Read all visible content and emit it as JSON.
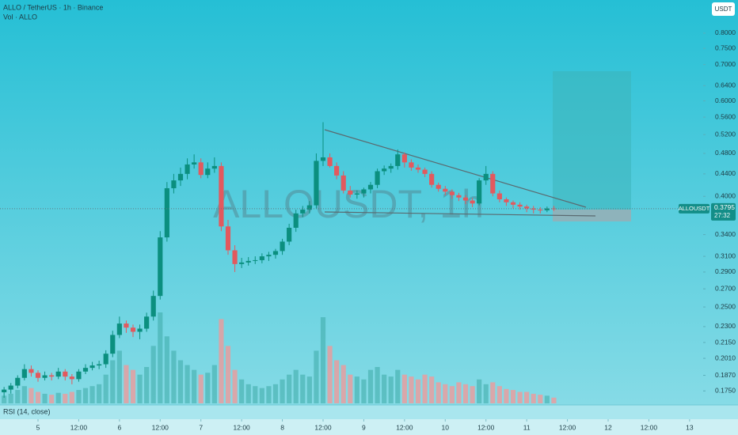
{
  "chart_data": {
    "type": "candlestick",
    "title": "ALLO / TetherUS · 1h · Binance",
    "volume_label": "Vol · ALLO",
    "watermark": "ALLOUSDT, 1h",
    "currency": "USDT",
    "symbol": "ALLOUSDT",
    "countdown": "27:32",
    "indicator_label": "RSI (14, close)",
    "log_scale": true,
    "up_color": "#0b8f7f",
    "down_color": "#e2595e",
    "x": [
      -10,
      -8,
      -6,
      -4,
      -2,
      0,
      2,
      4,
      6,
      8,
      10,
      12,
      14,
      16,
      18,
      20,
      22,
      24,
      26,
      28,
      30,
      32,
      34,
      36,
      38,
      40,
      42,
      44,
      46,
      48,
      50,
      52,
      54,
      56,
      58,
      60,
      62,
      64,
      66,
      68,
      70,
      72,
      74,
      76,
      78,
      80,
      82,
      84,
      86,
      88,
      90,
      92,
      94,
      96,
      98,
      100,
      102,
      104,
      106,
      108,
      110,
      112,
      114,
      116,
      118,
      120,
      122,
      124,
      126,
      128,
      130,
      132,
      134,
      136,
      138,
      140,
      142,
      144,
      146,
      148,
      150,
      152
    ],
    "open": [
      0.174,
      0.176,
      0.179,
      0.185,
      0.192,
      0.189,
      0.185,
      0.187,
      0.186,
      0.19,
      0.186,
      0.184,
      0.19,
      0.193,
      0.195,
      0.196,
      0.205,
      0.222,
      0.233,
      0.229,
      0.225,
      0.228,
      0.24,
      0.262,
      0.336,
      0.414,
      0.428,
      0.44,
      0.458,
      0.462,
      0.438,
      0.45,
      0.455,
      0.352,
      0.318,
      0.3,
      0.302,
      0.304,
      0.305,
      0.31,
      0.312,
      0.317,
      0.33,
      0.35,
      0.372,
      0.378,
      0.385,
      0.465,
      0.472,
      0.455,
      0.437,
      0.41,
      0.403,
      0.405,
      0.412,
      0.42,
      0.445,
      0.45,
      0.455,
      0.478,
      0.462,
      0.452,
      0.448,
      0.44,
      0.42,
      0.413,
      0.408,
      0.402,
      0.398,
      0.393,
      0.388,
      0.428,
      0.44,
      0.405,
      0.395,
      0.39,
      0.386,
      0.383,
      0.38,
      0.378,
      0.377,
      0.38
    ],
    "high": [
      0.178,
      0.181,
      0.187,
      0.196,
      0.195,
      0.191,
      0.19,
      0.189,
      0.193,
      0.192,
      0.188,
      0.192,
      0.196,
      0.198,
      0.199,
      0.208,
      0.226,
      0.24,
      0.236,
      0.232,
      0.232,
      0.244,
      0.268,
      0.345,
      0.425,
      0.44,
      0.452,
      0.47,
      0.478,
      0.47,
      0.462,
      0.472,
      0.462,
      0.362,
      0.325,
      0.308,
      0.309,
      0.31,
      0.314,
      0.316,
      0.32,
      0.334,
      0.356,
      0.378,
      0.384,
      0.392,
      0.48,
      0.548,
      0.48,
      0.462,
      0.445,
      0.418,
      0.41,
      0.415,
      0.425,
      0.45,
      0.456,
      0.46,
      0.488,
      0.482,
      0.468,
      0.458,
      0.452,
      0.445,
      0.424,
      0.418,
      0.412,
      0.406,
      0.402,
      0.397,
      0.432,
      0.455,
      0.445,
      0.41,
      0.398,
      0.393,
      0.39,
      0.386,
      0.384,
      0.382,
      0.383,
      0.384
    ],
    "low": [
      0.17,
      0.173,
      0.177,
      0.183,
      0.186,
      0.182,
      0.183,
      0.183,
      0.184,
      0.183,
      0.18,
      0.182,
      0.188,
      0.191,
      0.192,
      0.193,
      0.202,
      0.219,
      0.224,
      0.22,
      0.218,
      0.225,
      0.236,
      0.258,
      0.33,
      0.405,
      0.418,
      0.43,
      0.45,
      0.432,
      0.432,
      0.442,
      0.345,
      0.312,
      0.29,
      0.295,
      0.298,
      0.3,
      0.301,
      0.304,
      0.307,
      0.312,
      0.325,
      0.344,
      0.366,
      0.372,
      0.38,
      0.455,
      0.452,
      0.43,
      0.405,
      0.398,
      0.396,
      0.398,
      0.405,
      0.414,
      0.438,
      0.442,
      0.448,
      0.452,
      0.446,
      0.442,
      0.434,
      0.415,
      0.408,
      0.402,
      0.396,
      0.392,
      0.387,
      0.382,
      0.385,
      0.42,
      0.4,
      0.39,
      0.384,
      0.38,
      0.378,
      0.374,
      0.372,
      0.372,
      0.374,
      0.376
    ],
    "close": [
      0.176,
      0.179,
      0.185,
      0.192,
      0.189,
      0.185,
      0.187,
      0.186,
      0.19,
      0.186,
      0.184,
      0.19,
      0.193,
      0.195,
      0.196,
      0.205,
      0.222,
      0.233,
      0.229,
      0.225,
      0.228,
      0.24,
      0.262,
      0.336,
      0.414,
      0.428,
      0.44,
      0.458,
      0.462,
      0.438,
      0.45,
      0.455,
      0.352,
      0.318,
      0.3,
      0.302,
      0.304,
      0.305,
      0.31,
      0.312,
      0.317,
      0.33,
      0.35,
      0.372,
      0.378,
      0.385,
      0.465,
      0.472,
      0.455,
      0.437,
      0.41,
      0.403,
      0.405,
      0.412,
      0.42,
      0.445,
      0.45,
      0.455,
      0.478,
      0.462,
      0.452,
      0.448,
      0.44,
      0.42,
      0.413,
      0.408,
      0.402,
      0.398,
      0.393,
      0.388,
      0.428,
      0.44,
      0.405,
      0.395,
      0.39,
      0.386,
      0.383,
      0.38,
      0.378,
      0.377,
      0.38,
      0.3795
    ],
    "volume": [
      8,
      10,
      14,
      18,
      16,
      12,
      10,
      9,
      11,
      10,
      12,
      14,
      16,
      18,
      20,
      30,
      45,
      55,
      40,
      35,
      30,
      38,
      60,
      95,
      70,
      55,
      45,
      40,
      35,
      30,
      32,
      40,
      88,
      60,
      35,
      25,
      20,
      18,
      16,
      18,
      20,
      25,
      30,
      35,
      30,
      28,
      55,
      90,
      60,
      45,
      40,
      30,
      28,
      25,
      35,
      38,
      30,
      28,
      35,
      30,
      28,
      25,
      30,
      28,
      22,
      20,
      18,
      22,
      20,
      18,
      25,
      20,
      22,
      18,
      15,
      14,
      12,
      12,
      10,
      9,
      8,
      6
    ],
    "xlim": [
      -11.2,
      196
    ],
    "ylim": [
      0.166,
      0.921
    ],
    "xticks": [
      {
        "value": 0,
        "label": "5"
      },
      {
        "value": 12,
        "label": "12:00"
      },
      {
        "value": 24,
        "label": "6"
      },
      {
        "value": 36,
        "label": "12:00"
      },
      {
        "value": 48,
        "label": "7"
      },
      {
        "value": 60,
        "label": "12:00"
      },
      {
        "value": 72,
        "label": "8"
      },
      {
        "value": 84,
        "label": "12:00"
      },
      {
        "value": 96,
        "label": "9"
      },
      {
        "value": 108,
        "label": "12:00"
      },
      {
        "value": 120,
        "label": "10"
      },
      {
        "value": 132,
        "label": "12:00"
      },
      {
        "value": 144,
        "label": "11"
      },
      {
        "value": 156,
        "label": "12:00"
      },
      {
        "value": 168,
        "label": "12"
      },
      {
        "value": 180,
        "label": "12:00"
      },
      {
        "value": 192,
        "label": "13"
      }
    ],
    "yticks": [
      {
        "value": 0.8,
        "label": "0.8000"
      },
      {
        "value": 0.75,
        "label": "0.7500"
      },
      {
        "value": 0.7,
        "label": "0.7000"
      },
      {
        "value": 0.64,
        "label": "0.6400"
      },
      {
        "value": 0.6,
        "label": "0.6000"
      },
      {
        "value": 0.56,
        "label": "0.5600"
      },
      {
        "value": 0.52,
        "label": "0.5200"
      },
      {
        "value": 0.48,
        "label": "0.4800"
      },
      {
        "value": 0.44,
        "label": "0.4400"
      },
      {
        "value": 0.4,
        "label": "0.4000"
      },
      {
        "value": 0.34,
        "label": "0.3400"
      },
      {
        "value": 0.31,
        "label": "0.3100"
      },
      {
        "value": 0.29,
        "label": "0.2900"
      },
      {
        "value": 0.27,
        "label": "0.2700"
      },
      {
        "value": 0.25,
        "label": "0.2500"
      },
      {
        "value": 0.23,
        "label": "0.2300"
      },
      {
        "value": 0.215,
        "label": "0.2150"
      },
      {
        "value": 0.201,
        "label": "0.2010"
      },
      {
        "value": 0.187,
        "label": "0.1870"
      },
      {
        "value": 0.175,
        "label": "0.1750"
      }
    ]
  }
}
